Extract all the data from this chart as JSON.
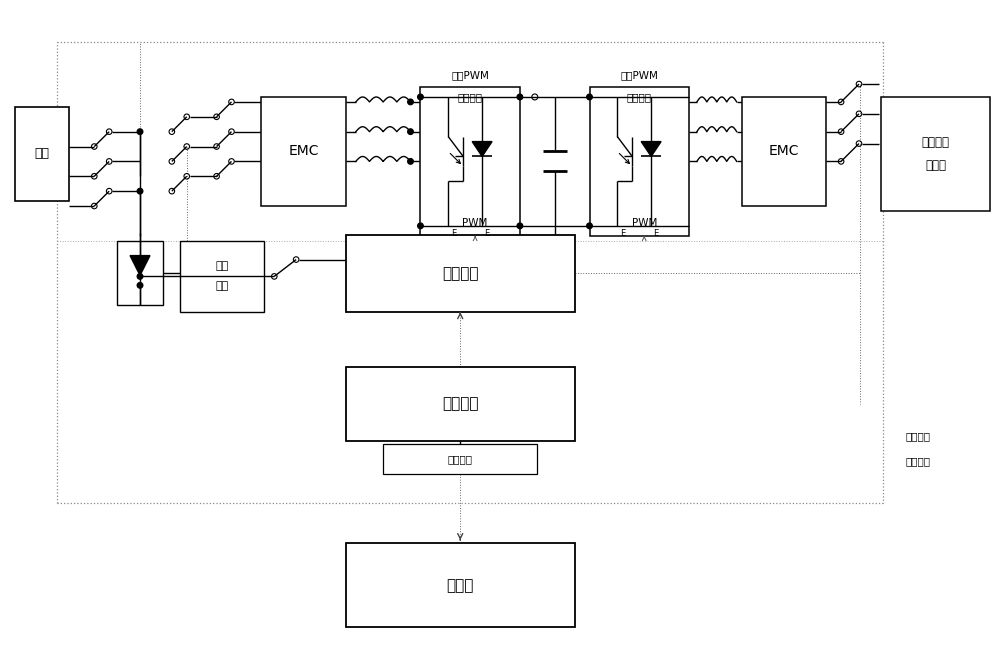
{
  "bg_color": "#ffffff",
  "fig_width": 10.0,
  "fig_height": 6.47,
  "labels": {
    "diangwang": "电网",
    "emc1": "EMC",
    "emc2": "EMC",
    "san_xiang_pwm_ni_1": "三相PWM",
    "san_xiang_pwm_ni_2": "逆变模块",
    "san_xiang_pwm_zheng_1": "三相PWM",
    "san_xiang_pwm_zheng_2": "整流模块",
    "yong_ci_1": "永磁同步",
    "yong_ci_2": "发电机",
    "dian_yuan_1": "电源",
    "dian_yuan_2": "模块",
    "qu_dong": "驱动微机",
    "kong_zhi": "控制微机",
    "tong_xun": "通讯接口",
    "shang_wei": "上位机",
    "xiao_gong_lv_1": "小功率风",
    "xiao_gong_lv_2": "电变流器",
    "pwm1": "PWM",
    "pwm2": "PWM"
  }
}
